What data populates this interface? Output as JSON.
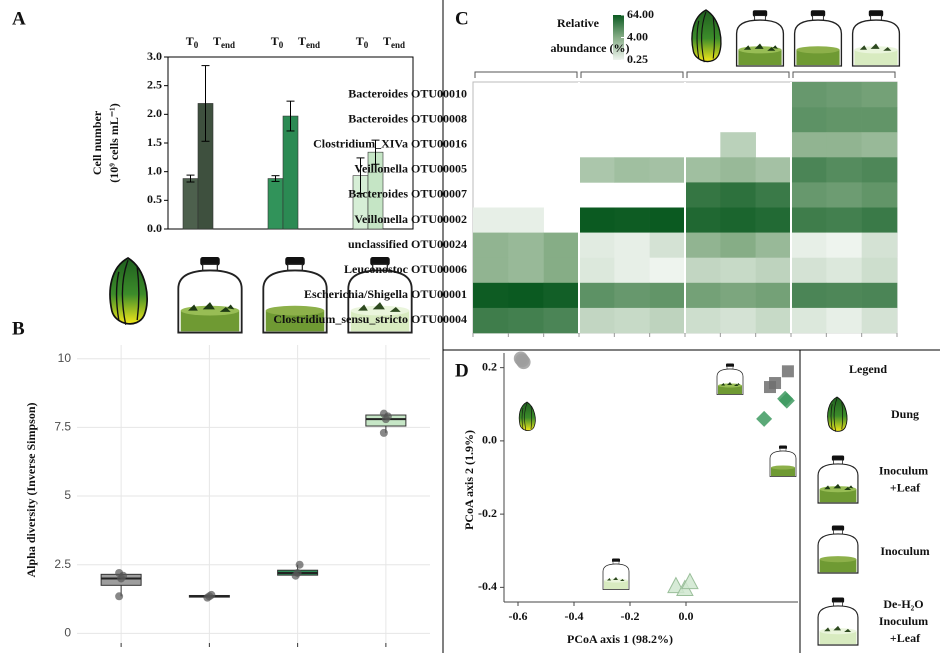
{
  "chart_data": [
    {
      "panel": "A",
      "type": "bar",
      "ylabel": [
        "Cell number",
        "(10⁹ cells mL⁻¹)"
      ],
      "categories": [
        null,
        null,
        null
      ],
      "series": [
        {
          "name": "T0",
          "colors": [
            "#4d604d",
            "#31935a",
            "#d6eed6"
          ],
          "values": [
            0.88,
            0.88,
            0.93
          ],
          "errors": [
            0.06,
            0.05,
            0.31
          ]
        },
        {
          "name": "Tend",
          "colors": [
            "#3e503e",
            "#2b8a53",
            "#c5e5c5"
          ],
          "values": [
            2.19,
            1.97,
            1.34
          ],
          "errors": [
            0.66,
            0.26,
            0.21
          ]
        }
      ],
      "ylim": [
        0,
        3
      ],
      "yticks": [
        {
          "value": 0,
          "label": "0.0"
        },
        0.5,
        {
          "value": 1,
          "label": "1.0"
        },
        1.5,
        {
          "value": 2,
          "label": "2.0"
        },
        2.5,
        {
          "value": 3,
          "label": "3.0"
        }
      ]
    },
    {
      "panel": "B",
      "type": "box",
      "ylabel": "Alpha diversity (Inverse Simpson)",
      "categories": [
        null,
        null,
        null,
        null
      ],
      "colors": [
        "#9e9e9e",
        "#3d4a3d",
        "#2e8b57",
        "#c6e6c6"
      ],
      "boxes": [
        {
          "whisker_low": 1.35,
          "q1": 1.75,
          "median": 2.0,
          "q3": 2.15,
          "whisker_high": 2.2,
          "points": [
            1.35,
            2.0,
            2.1,
            2.2
          ]
        },
        {
          "whisker_low": 1.3,
          "q1": 1.32,
          "median": 1.35,
          "q3": 1.38,
          "whisker_high": 1.4,
          "points": [
            1.3,
            1.35,
            1.4
          ]
        },
        {
          "whisker_low": 2.1,
          "q1": 2.12,
          "median": 2.2,
          "q3": 2.3,
          "whisker_high": 2.5,
          "points": [
            2.1,
            2.2,
            2.5
          ]
        },
        {
          "whisker_low": 7.3,
          "q1": 7.55,
          "median": 7.8,
          "q3": 7.95,
          "whisker_high": 8.0,
          "points": [
            7.3,
            7.8,
            7.9,
            8.0
          ]
        }
      ],
      "ylim": [
        -0.35,
        10.5
      ],
      "yticks": [
        0,
        2.5,
        5,
        7.5,
        10
      ],
      "grid": true
    },
    {
      "panel": "C",
      "type": "heatmap",
      "clabel": [
        "Relative",
        "abundance (%)"
      ],
      "clim": [
        0.25,
        64
      ],
      "log": true,
      "colors": [
        "#eef4ee",
        "#86ad86",
        "#0b5a21"
      ],
      "cticks": [
        {
          "value": 64,
          "label": "64.00"
        },
        {
          "value": 4,
          "label": "4.00"
        },
        0.25
      ],
      "rows": [
        "Bacteroides OTU00010",
        "Bacteroides OTU00008",
        "Clostridium_XIVa OTU00016",
        "Veillonella OTU00005",
        "Bacteroides OTU00007",
        "Veillonella OTU00002",
        "unclassified OTU00024",
        "Leuconostoc OTU00006",
        "Escherichia/Shigella OTU00001",
        "Clostridium_sensu_stricto OTU00004"
      ],
      "values": [
        [
          null,
          null,
          null,
          null,
          null,
          null,
          null,
          null,
          null,
          8,
          7,
          6
        ],
        [
          null,
          null,
          null,
          null,
          null,
          null,
          null,
          null,
          null,
          10,
          9,
          9
        ],
        [
          null,
          null,
          null,
          null,
          null,
          null,
          null,
          1,
          null,
          3,
          3,
          2.5
        ],
        [
          null,
          null,
          null,
          1.5,
          2,
          1.8,
          2,
          2.5,
          1.8,
          15,
          12,
          14
        ],
        [
          null,
          null,
          null,
          null,
          null,
          null,
          25,
          30,
          22,
          8,
          7,
          9
        ],
        [
          0.3,
          0.3,
          null,
          64,
          60,
          64,
          40,
          45,
          38,
          20,
          18,
          22
        ],
        [
          3,
          2.5,
          4,
          0.35,
          0.3,
          0.5,
          3,
          4,
          2.5,
          0.3,
          0.25,
          0.5
        ],
        [
          3,
          2.5,
          4,
          0.4,
          0.3,
          0.25,
          0.8,
          0.7,
          0.9,
          0.5,
          0.4,
          0.6
        ],
        [
          60,
          64,
          55,
          10,
          8,
          9,
          6,
          5,
          6,
          15,
          14,
          15
        ],
        [
          20,
          18,
          15,
          0.8,
          0.7,
          0.9,
          0.6,
          0.5,
          0.7,
          0.4,
          0.3,
          0.5
        ]
      ]
    },
    {
      "panel": "D",
      "type": "scatter",
      "xlabel": "PCoA axis 1 (98.2%)",
      "ylabel": "PCoA axis 2 (1.9%)",
      "legend_title": "Legend",
      "xlim": [
        -0.65,
        0.4
      ],
      "ylim": [
        -0.44,
        0.24
      ],
      "xticks": [
        -0.6,
        -0.4,
        -0.2,
        {
          "value": 0,
          "label": "0.0"
        }
      ],
      "yticks": [
        0.2,
        {
          "value": 0,
          "label": "0.0"
        },
        -0.2,
        -0.4
      ],
      "series": [
        {
          "name": "Dung",
          "marker": "circle",
          "color": "#9e9e9e",
          "x": [
            -0.59,
            -0.585,
            -0.58
          ],
          "y": [
            0.225,
            0.22,
            0.215
          ]
        },
        {
          "name": "Inoculum +Leaf",
          "marker": "square",
          "color": "#6e6e6e",
          "x": [
            0.3,
            0.318,
            0.364
          ],
          "y": [
            0.147,
            0.158,
            0.19
          ]
        },
        {
          "name": "Inoculum",
          "marker": "diamond",
          "color": "#3e9a60",
          "x": [
            0.279,
            0.354,
            0.36
          ],
          "y": [
            0.06,
            0.115,
            0.11
          ]
        },
        {
          "name": "De-H₂O Inoculum +Leaf",
          "marker": "triangle",
          "color": "#d0e8d0",
          "x": [
            -0.036,
            -0.004,
            0.014
          ],
          "y": [
            -0.398,
            -0.406,
            -0.387
          ]
        }
      ]
    }
  ]
}
